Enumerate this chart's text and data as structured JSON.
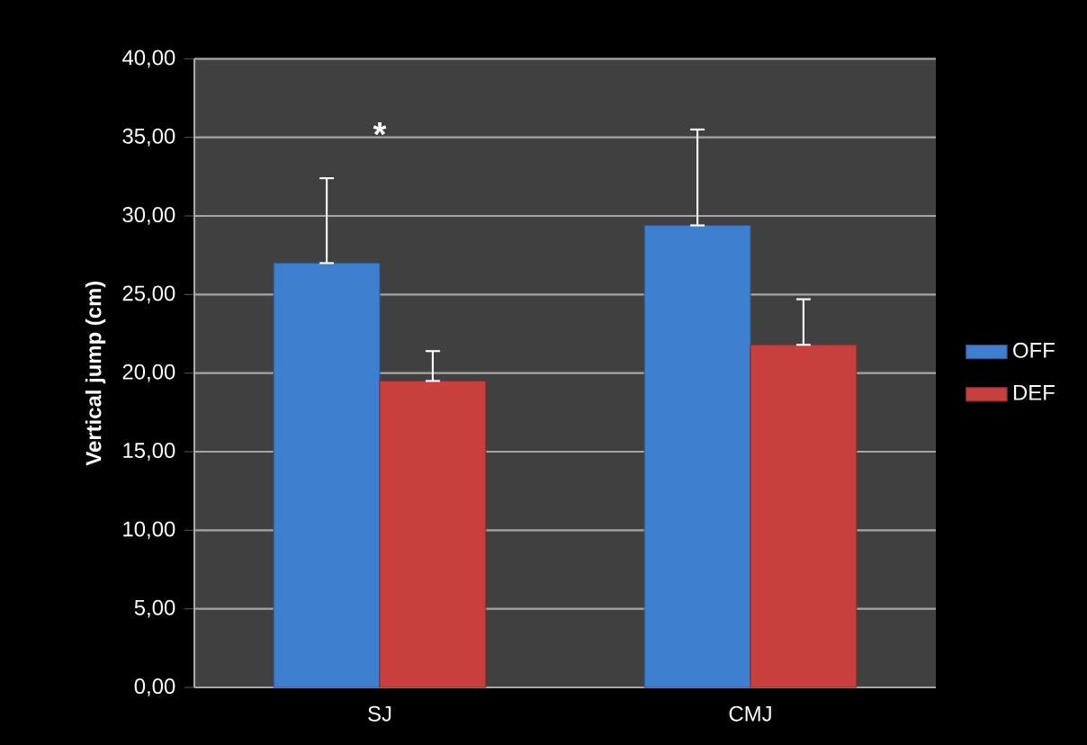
{
  "chart_data": {
    "type": "bar",
    "ylabel": "Vertical jump (cm)",
    "categories": [
      "SJ",
      "CMJ"
    ],
    "series": [
      {
        "name": "OFF",
        "color": "#3f7fd0",
        "values": [
          27.0,
          29.4
        ],
        "errors": [
          [
            27.0,
            32.4
          ],
          [
            29.4,
            35.5
          ]
        ]
      },
      {
        "name": "DEF",
        "color": "#c8403d",
        "values": [
          19.5,
          21.8
        ],
        "errors": [
          [
            19.5,
            21.4
          ],
          [
            21.8,
            24.7
          ]
        ]
      }
    ],
    "ylim": [
      0,
      40
    ],
    "yticks": [
      {
        "value": 0,
        "label": "0,00"
      },
      {
        "value": 5,
        "label": "5,00"
      },
      {
        "value": 10,
        "label": "10,00"
      },
      {
        "value": 15,
        "label": "15,00"
      },
      {
        "value": 20,
        "label": "20,00"
      },
      {
        "value": 25,
        "label": "25,00"
      },
      {
        "value": 30,
        "label": "30,00"
      },
      {
        "value": 35,
        "label": "35,00"
      },
      {
        "value": 40,
        "label": "40,00"
      }
    ],
    "grid": "y",
    "legend": "right",
    "annotations": [
      "*"
    ]
  }
}
